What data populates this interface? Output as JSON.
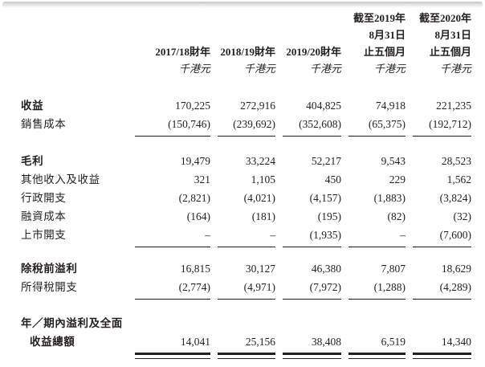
{
  "page": {
    "background": "#ffffff",
    "text_color": "#231f20"
  },
  "table": {
    "header": {
      "col_2019_5m": {
        "line1": "截至2019年",
        "line2": "8月31日",
        "line3": "止五個月"
      },
      "col_2020_5m": {
        "line1": "截至2020年",
        "line2": "8月31日",
        "line3": "止五個月"
      },
      "fy_2017_18": "2017/18財年",
      "fy_2018_19": "2018/19財年",
      "fy_2019_20": "2019/20財年",
      "unit": "千港元"
    },
    "rows": [
      {
        "label": "收益",
        "values": [
          "170,225",
          "272,916",
          "404,825",
          "74,918",
          "221,235"
        ]
      },
      {
        "label": "銷售成本",
        "values": [
          "(150,746)",
          "(239,692)",
          "(352,608)",
          "(65,375)",
          "(192,712)"
        ]
      },
      {
        "label": "毛利",
        "values": [
          "19,479",
          "33,224",
          "52,217",
          "9,543",
          "28,523"
        ]
      },
      {
        "label": "其他收入及收益",
        "values": [
          "321",
          "1,105",
          "450",
          "229",
          "1,562"
        ]
      },
      {
        "label": "行政開支",
        "values": [
          "(2,821)",
          "(4,021)",
          "(4,157)",
          "(1,883)",
          "(3,824)"
        ]
      },
      {
        "label": "融資成本",
        "values": [
          "(164)",
          "(181)",
          "(195)",
          "(82)",
          "(32)"
        ]
      },
      {
        "label": "上市開支",
        "values": [
          "–",
          "–",
          "(1,935)",
          "–",
          "(7,600)"
        ]
      },
      {
        "label": "除稅前溢利",
        "values": [
          "16,815",
          "30,127",
          "46,380",
          "7,807",
          "18,629"
        ]
      },
      {
        "label": "所得稅開支",
        "values": [
          "(2,774)",
          "(4,971)",
          "(7,972)",
          "(1,288)",
          "(4,289)"
        ]
      },
      {
        "label": "年／期內溢利及全面",
        "values": [
          "",
          "",
          "",
          "",
          ""
        ]
      },
      {
        "label": "收益總額",
        "values": [
          "14,041",
          "25,156",
          "38,408",
          "6,519",
          "14,340"
        ]
      }
    ]
  }
}
